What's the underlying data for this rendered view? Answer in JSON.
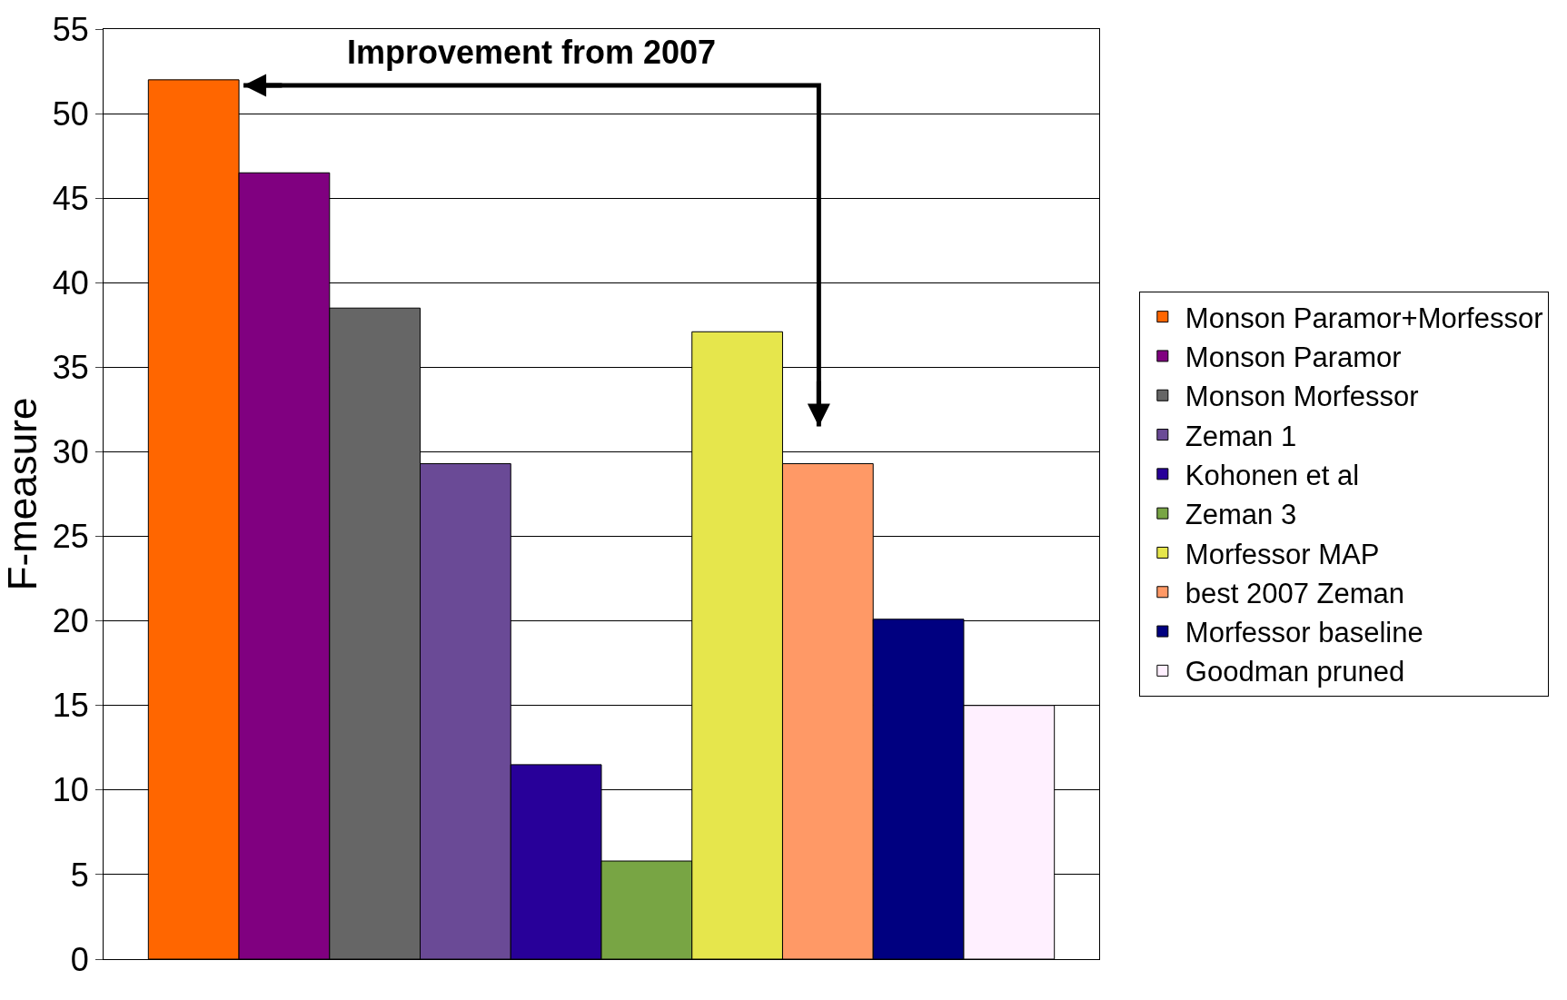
{
  "chart_data": {
    "type": "bar",
    "ylabel": "F-measure",
    "categories": [
      null
    ],
    "series": [
      {
        "name": "Monson Paramor+Morfessor",
        "color": "#ff6600",
        "values": [
          52.0
        ]
      },
      {
        "name": "Monson Paramor",
        "color": "#800080",
        "values": [
          46.5
        ]
      },
      {
        "name": "Monson Morfessor",
        "color": "#666666",
        "values": [
          38.5
        ]
      },
      {
        "name": "Zeman 1",
        "color": "#6a4a96",
        "values": [
          29.3
        ]
      },
      {
        "name": "Kohonen et al",
        "color": "#280099",
        "values": [
          11.5
        ]
      },
      {
        "name": "Zeman 3",
        "color": "#78a544",
        "values": [
          5.8
        ]
      },
      {
        "name": "Morfessor MAP",
        "color": "#e6e64c",
        "values": [
          37.1
        ]
      },
      {
        "name": "best 2007 Zeman",
        "color": "#ff9966",
        "values": [
          29.3
        ]
      },
      {
        "name": "Morfessor baseline",
        "color": "#000080",
        "values": [
          20.1
        ]
      },
      {
        "name": "Goodman pruned",
        "color": "#fff0ff",
        "values": [
          15.0
        ]
      }
    ],
    "ylim": [
      0,
      55
    ],
    "yticks": [
      0,
      5,
      10,
      15,
      20,
      25,
      30,
      35,
      40,
      45,
      50,
      55
    ],
    "grid": "y",
    "legend": "right",
    "tick_labels": "y",
    "annotations": [
      "Improvement from 2007"
    ]
  }
}
